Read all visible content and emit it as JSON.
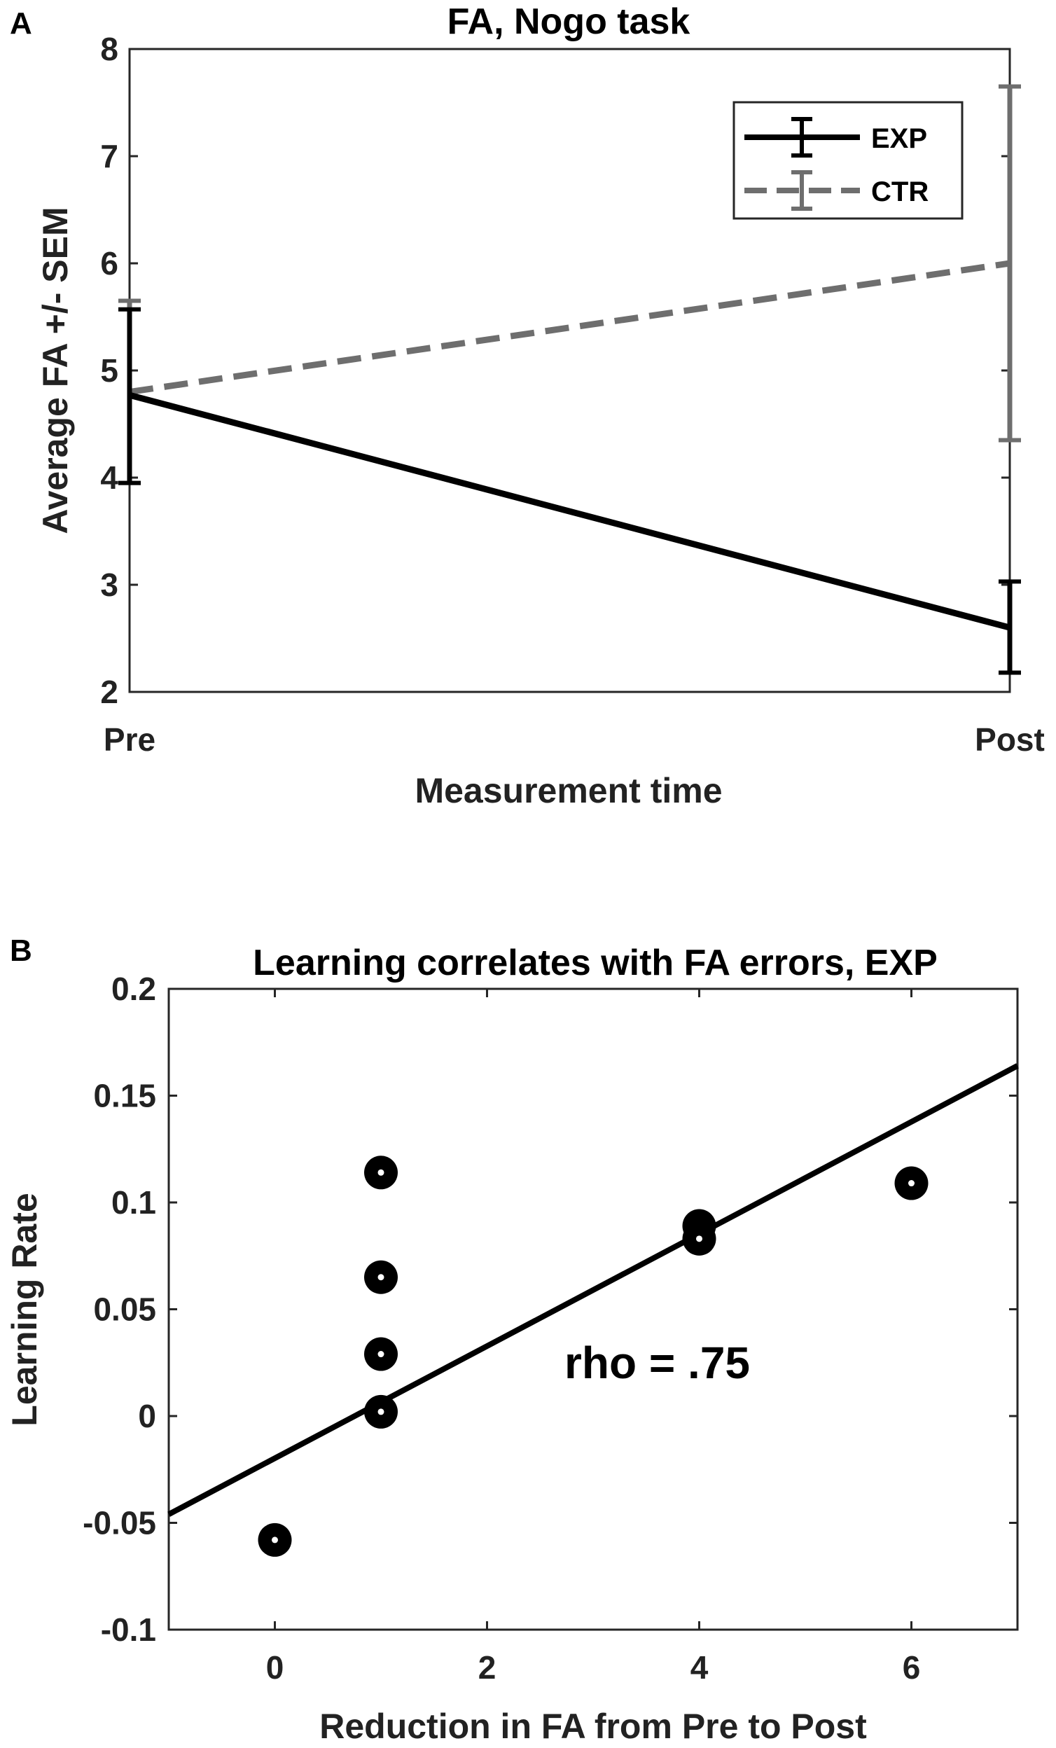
{
  "chart_data": [
    {
      "panel": "A",
      "type": "line",
      "title": "FA, Nogo task",
      "xlabel": "Measurement time",
      "ylabel": "Average FA +/- SEM",
      "categories": [
        "Pre",
        "Post"
      ],
      "ylim": [
        2,
        8
      ],
      "yticks": [
        2,
        3,
        4,
        5,
        6,
        7,
        8
      ],
      "legend_position": "top-right",
      "series": [
        {
          "name": "EXP",
          "values": [
            4.77,
            2.6
          ],
          "err_low": [
            3.95,
            2.18
          ],
          "err_high": [
            5.57,
            3.03
          ],
          "color": "#000000",
          "style": "solid"
        },
        {
          "name": "CTR",
          "values": [
            4.8,
            6.0
          ],
          "err_low": [
            3.95,
            4.35
          ],
          "err_high": [
            5.65,
            7.65
          ],
          "color": "#6e6e6e",
          "style": "dashed"
        }
      ]
    },
    {
      "panel": "B",
      "type": "scatter",
      "title": "Learning correlates with FA errors, EXP",
      "xlabel": "Reduction in FA from Pre to Post",
      "ylabel": "Learning Rate",
      "xlim": [
        -1,
        7
      ],
      "ylim": [
        -0.1,
        0.2
      ],
      "xticks": [
        0,
        2,
        4,
        6
      ],
      "yticks": [
        -0.1,
        -0.05,
        0,
        0.05,
        0.1,
        0.15,
        0.2
      ],
      "ytick_labels": [
        "-0.1",
        "-0.05",
        "0",
        "0.05",
        "0.1",
        "0.15",
        "0.2"
      ],
      "points": [
        {
          "x": 0,
          "y": -0.058
        },
        {
          "x": 1,
          "y": 0.114
        },
        {
          "x": 1,
          "y": 0.065
        },
        {
          "x": 1,
          "y": 0.029
        },
        {
          "x": 1,
          "y": 0.002
        },
        {
          "x": 4,
          "y": 0.089
        },
        {
          "x": 4,
          "y": 0.083
        },
        {
          "x": 6,
          "y": 0.109
        }
      ],
      "fit_line": {
        "x": [
          -1,
          7
        ],
        "y": [
          -0.046,
          0.164
        ]
      },
      "annotation": "rho = .75"
    }
  ]
}
